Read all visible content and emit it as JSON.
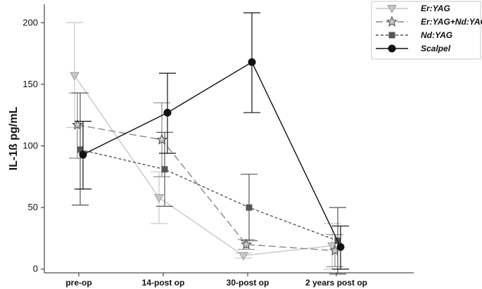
{
  "chart_data": {
    "type": "line",
    "ylabel": "IL-1ß pg/mL",
    "xlabel": "",
    "title": "",
    "categories": [
      "pre-op",
      "14-post op",
      "30-post op",
      "2 years post op"
    ],
    "ylim": [
      -3,
      215
    ],
    "yticks": [
      0,
      50,
      100,
      150,
      200
    ],
    "grid": false,
    "legend_position": "top-right",
    "series": [
      {
        "name": "Er:YAG",
        "color": "#c8c8c8",
        "marker": "triangle-down",
        "line_style": "solid",
        "values": [
          157,
          58,
          11,
          19
        ],
        "error_low": [
          115,
          37,
          9,
          0
        ],
        "error_high": [
          200,
          79,
          13,
          37
        ]
      },
      {
        "name": "Er:YAG+Nd:YAG",
        "color": "#888888",
        "marker": "star",
        "line_style": "long-dash",
        "values": [
          117,
          105,
          20,
          15
        ],
        "error_low": [
          90,
          75,
          16,
          2
        ],
        "error_high": [
          143,
          135,
          24,
          28
        ]
      },
      {
        "name": "Nd:YAG",
        "color": "#555555",
        "marker": "square",
        "line_style": "short-dash",
        "values": [
          97,
          81,
          50,
          23
        ],
        "error_low": [
          52,
          51,
          23,
          -4
        ],
        "error_high": [
          143,
          111,
          77,
          50
        ]
      },
      {
        "name": "Scalpel",
        "color": "#111111",
        "marker": "circle",
        "line_style": "solid",
        "values": [
          93,
          127,
          168,
          18
        ],
        "error_low": [
          65,
          94,
          127,
          0
        ],
        "error_high": [
          120,
          159,
          208,
          35
        ]
      }
    ]
  }
}
